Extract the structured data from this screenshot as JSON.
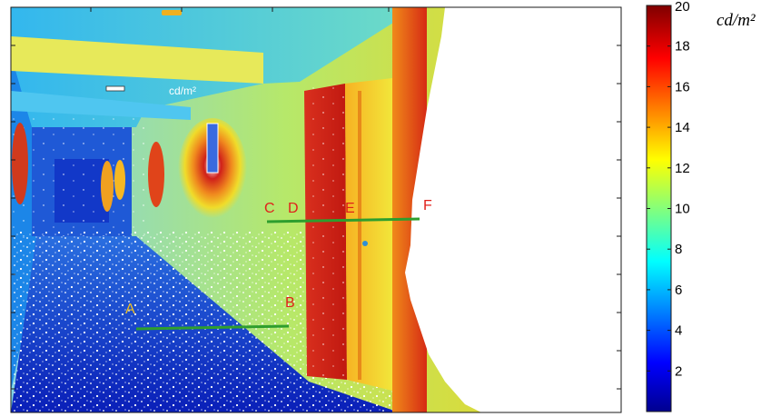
{
  "figure": {
    "unit_label_image": "cd/m²",
    "unit_label_colorbar": "cd/m²",
    "colorbar": {
      "min": 0,
      "max": 20,
      "ticks": [
        "2",
        "4",
        "6",
        "8",
        "10",
        "12",
        "14",
        "16",
        "18",
        "20"
      ],
      "colormap": "jet"
    },
    "measurement_lines": [
      {
        "start_label": "A",
        "end_label": "B",
        "color": "#2e9e2e"
      },
      {
        "start_label": "C",
        "end_label": "F",
        "color": "#2e9e2e"
      }
    ],
    "point_labels": [
      "A",
      "B",
      "C",
      "D",
      "E",
      "F"
    ],
    "colors": {
      "label": "#e0201a",
      "frame": "#1a1a1a",
      "saturated": "#ffffff"
    }
  }
}
